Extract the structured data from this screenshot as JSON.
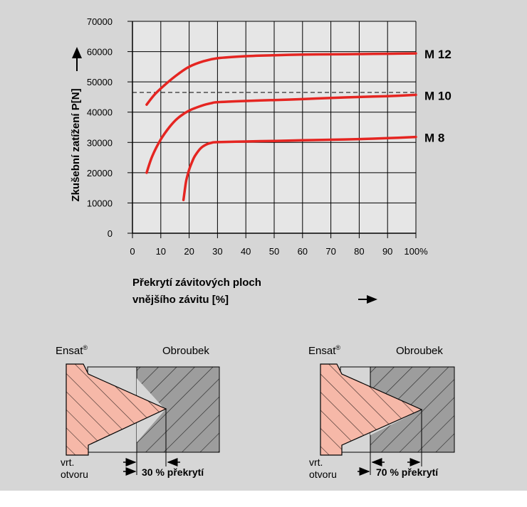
{
  "chart_data": {
    "type": "line",
    "xlabel_line1": "Překrytí závitových ploch",
    "xlabel_line2": "vnějšího závitu  [%]",
    "ylabel": "Zkušební zatížení  P[N]",
    "x_ticks": [
      "0",
      "10",
      "20",
      "30",
      "40",
      "50",
      "60",
      "70",
      "80",
      "90",
      "100%"
    ],
    "y_ticks": [
      "0",
      "10000",
      "20000",
      "30000",
      "40000",
      "50000",
      "60000",
      "70000"
    ],
    "xlim": [
      0,
      100
    ],
    "ylim": [
      0,
      70000
    ],
    "grid": true,
    "reference_line": 46500,
    "series": [
      {
        "name": "M 12",
        "color": "#e52521",
        "x": [
          5,
          8,
          12,
          16,
          20,
          25,
          30,
          40,
          50,
          60,
          70,
          80,
          90,
          100
        ],
        "y": [
          42500,
          46000,
          49500,
          52500,
          55000,
          56800,
          57800,
          58500,
          58800,
          59000,
          59100,
          59200,
          59300,
          59400
        ]
      },
      {
        "name": "M 10",
        "color": "#e52521",
        "x": [
          5,
          7,
          10,
          13,
          16,
          20,
          25,
          28,
          30,
          40,
          50,
          60,
          70,
          80,
          90,
          100
        ],
        "y": [
          20000,
          25500,
          31000,
          35000,
          38000,
          40500,
          42300,
          43000,
          43300,
          43700,
          44000,
          44300,
          44700,
          45000,
          45300,
          45700
        ]
      },
      {
        "name": "M 8",
        "color": "#e52521",
        "x": [
          18,
          18.5,
          19,
          20,
          21,
          22,
          24,
          26,
          28,
          30,
          40,
          50,
          60,
          70,
          80,
          90,
          100
        ],
        "y": [
          11000,
          14500,
          17500,
          21000,
          23500,
          25500,
          28000,
          29300,
          29900,
          30100,
          30300,
          30500,
          30700,
          30900,
          31100,
          31400,
          31800
        ]
      }
    ]
  },
  "diagrams": [
    {
      "left_label": "Ensat",
      "reg": "®",
      "right_label": "Obroubek",
      "hole_label_1": "vrt.",
      "hole_label_2": "otvoru",
      "overlap_label": "30 % překrytí"
    },
    {
      "left_label": "Ensat",
      "reg": "®",
      "right_label": "Obroubek",
      "hole_label_1": "vrt.",
      "hole_label_2": "otvoru",
      "overlap_label": "70 % překrytí"
    }
  ],
  "colors": {
    "background": "#d6d6d6",
    "plot_background": "#e6e6e6",
    "curve": "#e52521",
    "insert_fill": "#f6b8a8",
    "nut_fill": "#9d9d9d"
  }
}
